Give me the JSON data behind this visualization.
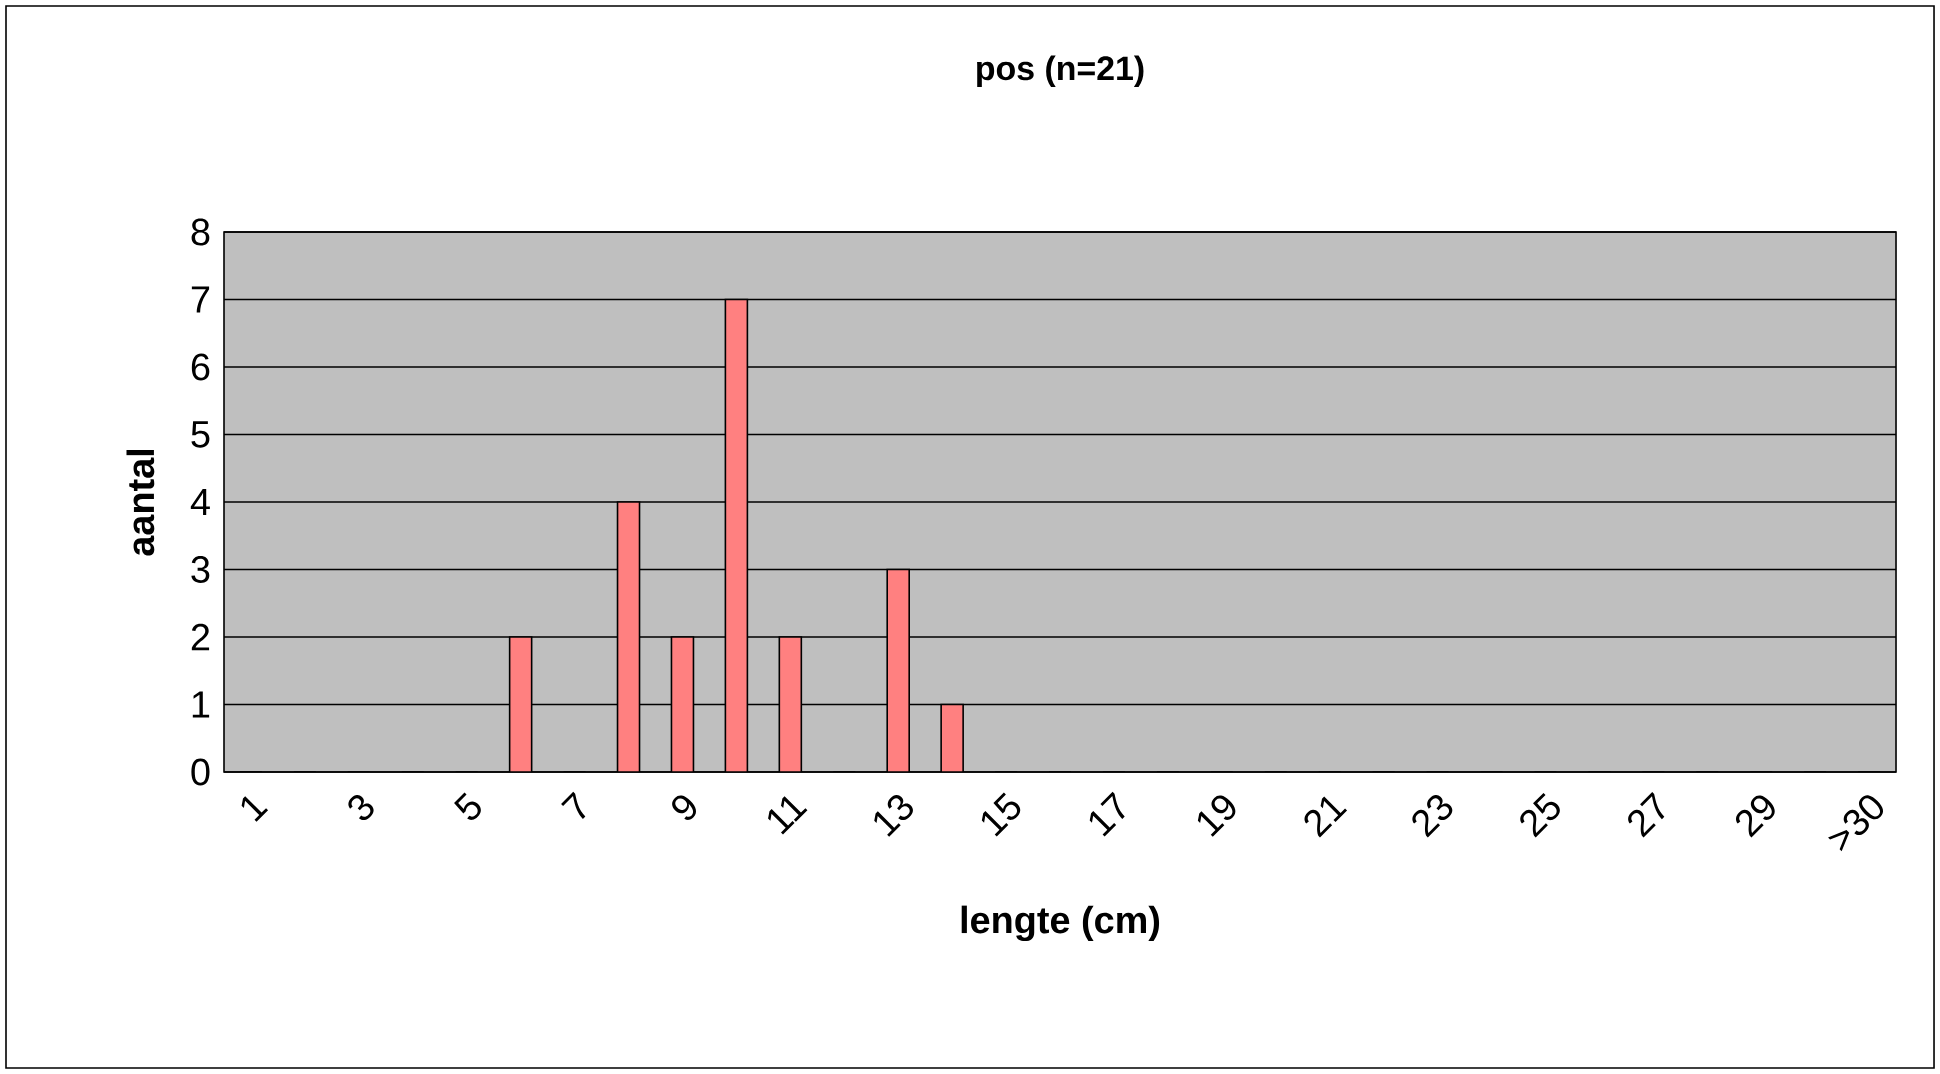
{
  "chart_data": {
    "type": "bar",
    "title": "pos (n=21)",
    "xlabel": "lengte (cm)",
    "ylabel": "aantal",
    "categories": [
      "1",
      null,
      "3",
      null,
      "5",
      null,
      "7",
      null,
      "9",
      null,
      "11",
      null,
      "13",
      null,
      "15",
      null,
      "17",
      null,
      "19",
      null,
      "21",
      null,
      "23",
      null,
      "25",
      null,
      "27",
      null,
      "29",
      null,
      ">30"
    ],
    "values": [
      0,
      0,
      0,
      0,
      0,
      2,
      0,
      4,
      2,
      7,
      2,
      0,
      3,
      1,
      0,
      0,
      0,
      0,
      0,
      0,
      0,
      0,
      0,
      0,
      0,
      0,
      0,
      0,
      0,
      0,
      0
    ],
    "color": "#ff8080",
    "ylim": [
      0,
      8
    ],
    "yticks": [
      0,
      1,
      2,
      3,
      4,
      5,
      6,
      7,
      8
    ],
    "grid": "y"
  }
}
